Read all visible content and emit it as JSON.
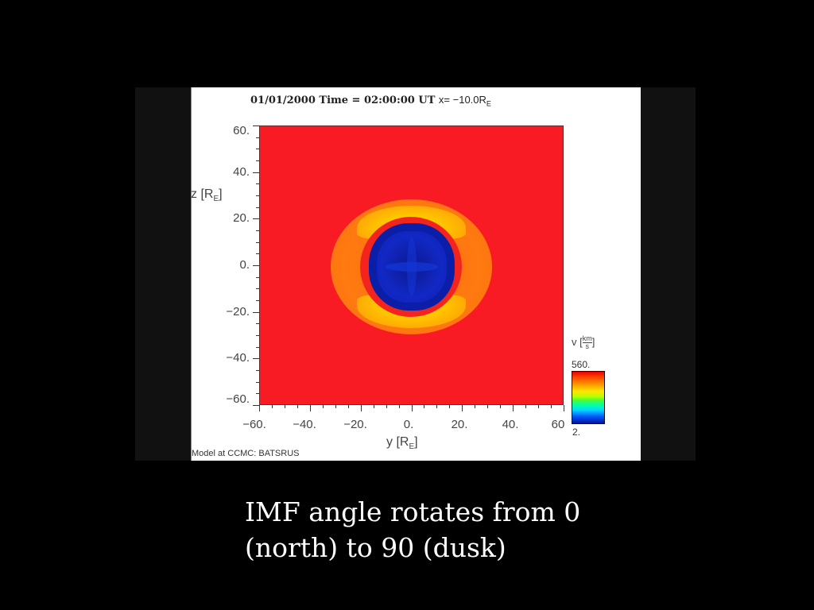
{
  "slide": {
    "background": "#000000",
    "caption_line1": "IMF angle rotates from 0",
    "caption_line2": "(north) to 90 (dusk)"
  },
  "figure": {
    "title_date": "01/01/2000",
    "title_time": "Time = 02:00:00 UT",
    "title_xpos": "x= −10.0R",
    "title_xpos_sub": "E",
    "credit": "Model at CCMC: BATSRUS",
    "y_axis_title": "z [R",
    "y_axis_title_sub": "E",
    "x_axis_title": "y [R",
    "x_axis_title_sub": "E",
    "y_ticks": [
      "60.",
      "40.",
      "20.",
      "0.",
      "−20.",
      "−40.",
      "−60."
    ],
    "x_ticks": [
      "−60.",
      "−40.",
      "−20.",
      "0.",
      "20.",
      "40.",
      "60"
    ],
    "colorbar": {
      "variable": "v [",
      "unit_num": "km",
      "unit_den": "s",
      "unit_close": "]",
      "max": "560.",
      "min": "2."
    }
  },
  "chart_data": {
    "type": "heatmap",
    "title": "01/01/2000 Time = 02:00:00 UT x= -10.0 R_E",
    "xlabel": "y [R_E]",
    "ylabel": "z [R_E]",
    "xlim": [
      -60,
      60
    ],
    "ylim": [
      -60,
      60
    ],
    "x_ticks": [
      -60,
      -40,
      -20,
      0,
      20,
      40,
      60
    ],
    "y_ticks": [
      -60,
      -40,
      -20,
      0,
      20,
      40,
      60
    ],
    "colorbar": {
      "label": "v [km/s]",
      "min": 2,
      "max": 560,
      "colormap": "rainbow (blue→red)"
    },
    "regions": [
      {
        "name": "solar wind background",
        "value_approx": 560,
        "color": "red",
        "extent": "full domain"
      },
      {
        "name": "magnetosheath",
        "value_approx": 450,
        "color": "orange/yellow",
        "y_range": [
          -32,
          32
        ],
        "z_range": [
          -27,
          27
        ],
        "shape": "ellipse"
      },
      {
        "name": "magnetosheath yellow lobes",
        "value_approx": 400,
        "color": "yellow",
        "locations": "north and south of core, z≈±20"
      },
      {
        "name": "magnetosphere core",
        "value_approx": 20,
        "color": "dark blue",
        "y_range": [
          -15,
          17
        ],
        "z_range": [
          -16,
          16
        ],
        "shape": "rounded diamond"
      }
    ],
    "legend_position": "right"
  }
}
